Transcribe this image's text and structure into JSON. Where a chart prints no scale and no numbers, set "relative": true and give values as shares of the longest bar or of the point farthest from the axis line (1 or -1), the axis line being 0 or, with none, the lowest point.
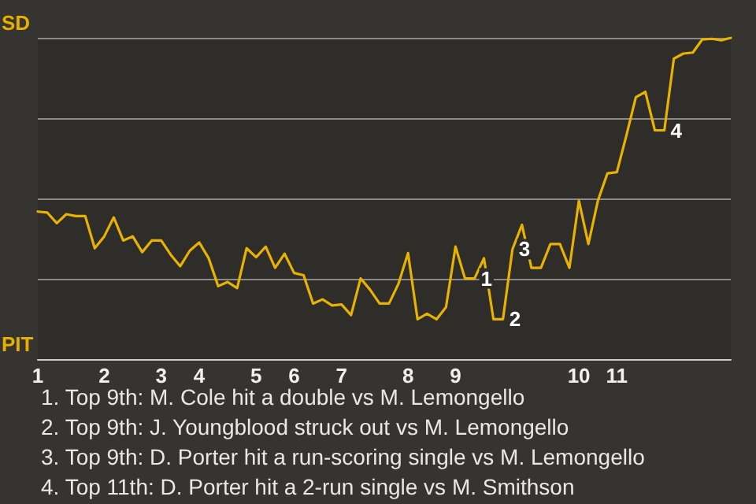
{
  "chart_data": {
    "type": "line",
    "categories": [
      "1",
      null,
      null,
      null,
      null,
      null,
      null,
      "2",
      null,
      null,
      null,
      null,
      null,
      "3",
      null,
      null,
      null,
      "4",
      null,
      null,
      null,
      null,
      null,
      "5",
      null,
      null,
      null,
      "6",
      null,
      null,
      null,
      null,
      "7",
      null,
      null,
      null,
      null,
      null,
      null,
      "8",
      null,
      null,
      null,
      null,
      "9",
      null,
      null,
      null,
      null,
      null,
      null,
      null,
      null,
      null,
      null,
      null,
      null,
      "10",
      null,
      null,
      null,
      "11",
      null,
      null,
      null,
      null,
      null,
      null,
      null,
      null,
      null,
      null,
      null,
      null
    ],
    "values": [
      0.459,
      0.456,
      0.423,
      0.451,
      0.445,
      0.445,
      0.345,
      0.382,
      0.441,
      0.369,
      0.382,
      0.333,
      0.369,
      0.369,
      0.325,
      0.289,
      0.337,
      0.363,
      0.314,
      0.227,
      0.24,
      0.221,
      0.345,
      0.317,
      0.35,
      0.284,
      0.328,
      0.268,
      0.261,
      0.173,
      0.186,
      0.167,
      0.17,
      0.137,
      0.251,
      0.216,
      0.173,
      0.173,
      0.235,
      0.33,
      0.124,
      0.141,
      0.124,
      0.162,
      0.35,
      0.251,
      0.251,
      0.314,
      0.124,
      0.124,
      0.342,
      0.418,
      0.284,
      0.284,
      0.358,
      0.358,
      0.284,
      0.493,
      0.358,
      0.493,
      0.578,
      0.582,
      0.696,
      0.815,
      0.832,
      0.712,
      0.712,
      0.935,
      0.951,
      0.954,
      0.995,
      0.997,
      0.992,
      1.0
    ],
    "relative": true,
    "color": "#e8b200",
    "grid": "y",
    "marker": "none",
    "annotations": [
      "SD",
      "PIT",
      {
        "text": "1",
        "y": 0.251
      },
      {
        "text": "2",
        "y": 0.124
      },
      {
        "text": "3",
        "y": 0.342
      },
      {
        "text": "4",
        "y": 0.712
      },
      "1. Top 9th: M. Cole hit a double vs M. Lemongello",
      "2. Top 9th: J. Youngblood struck out vs M. Lemongello",
      "3. Top 9th: D. Porter hit a run-scoring single vs M. Lemongello",
      "4. Top 11th: D. Porter hit a 2-run single vs M. Smithson"
    ]
  }
}
